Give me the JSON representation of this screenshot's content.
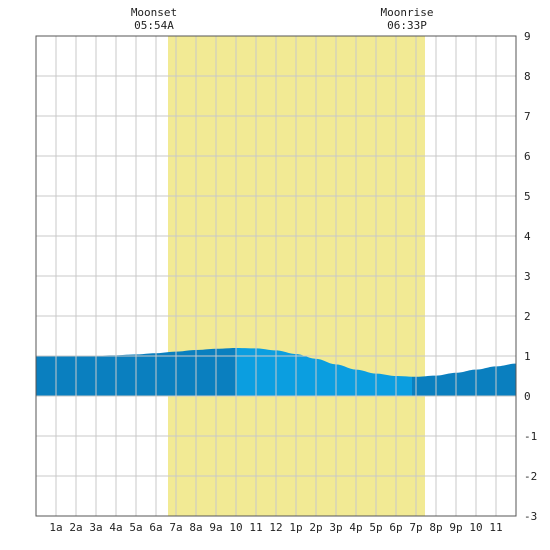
{
  "chart_data": {
    "type": "area",
    "x_ticks": [
      "1a",
      "2a",
      "3a",
      "4a",
      "5a",
      "6a",
      "7a",
      "8a",
      "9a",
      "10",
      "11",
      "12",
      "1p",
      "2p",
      "3p",
      "4p",
      "5p",
      "6p",
      "7p",
      "8p",
      "9p",
      "10",
      "11"
    ],
    "x_range_hours": [
      0,
      24
    ],
    "y_ticks": [
      "9",
      "8",
      "7",
      "6",
      "5",
      "4",
      "3",
      "2",
      "1",
      "0",
      "-1",
      "-2",
      "-3"
    ],
    "ylim": [
      -3,
      9
    ],
    "daylight_hours": [
      6.6,
      19.45
    ],
    "annotations": [
      {
        "title": "Moonset",
        "time": "05:54A",
        "hour": 5.9
      },
      {
        "title": "Moonrise",
        "time": "06:33P",
        "hour": 18.55
      }
    ],
    "tide_series": {
      "x": [
        0,
        1,
        2,
        3,
        4,
        5,
        6,
        7,
        8,
        9,
        10,
        11,
        12,
        13,
        14,
        15,
        16,
        17,
        18,
        19,
        20,
        21,
        22,
        23,
        24
      ],
      "values": [
        0.99,
        1.0,
        1.0,
        1.01,
        1.02,
        1.04,
        1.07,
        1.11,
        1.15,
        1.18,
        1.2,
        1.19,
        1.14,
        1.05,
        0.93,
        0.79,
        0.66,
        0.56,
        0.5,
        0.48,
        0.51,
        0.58,
        0.66,
        0.74,
        0.81
      ]
    },
    "segments": [
      {
        "from": 0,
        "to": 10.0,
        "color": "#0a7fbf"
      },
      {
        "from": 10.0,
        "to": 18.8,
        "color": "#0b9ee0"
      },
      {
        "from": 18.8,
        "to": 24,
        "color": "#0a7fbf"
      }
    ],
    "grid": true,
    "colors": {
      "daylight": "#f2ea94",
      "grid": "#c8c8c8",
      "frame": "#555555"
    }
  }
}
